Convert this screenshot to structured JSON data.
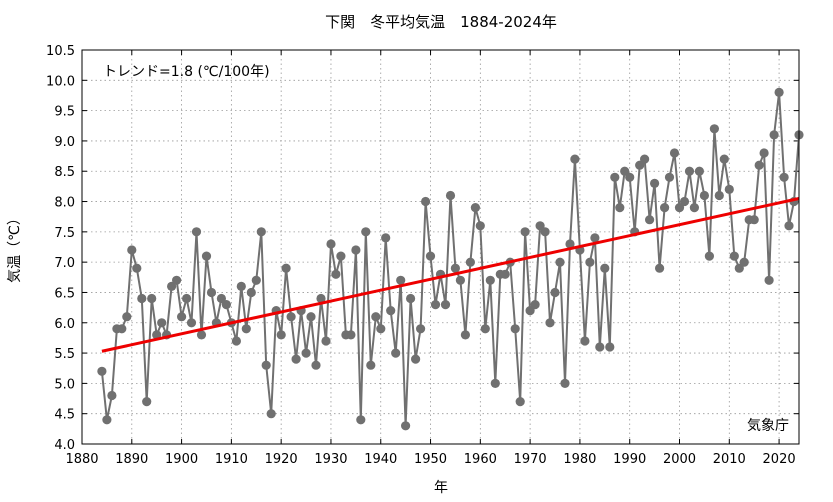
{
  "chart_data": {
    "type": "line",
    "title": "下関　冬平均気温　1884-2024年",
    "xlabel": "年",
    "ylabel": "気温（℃）",
    "xlim": [
      1880,
      2024
    ],
    "ylim": [
      4.0,
      10.5
    ],
    "x_ticks": [
      1880,
      1890,
      1900,
      1910,
      1920,
      1930,
      1940,
      1950,
      1960,
      1970,
      1980,
      1990,
      2000,
      2010,
      2020
    ],
    "y_ticks": [
      4.0,
      4.5,
      5.0,
      5.5,
      6.0,
      6.5,
      7.0,
      7.5,
      8.0,
      8.5,
      9.0,
      9.5,
      10.0,
      10.5
    ],
    "grid": true,
    "trend_label": "トレンド=1.8 (℃/100年)",
    "source_label": "気象庁",
    "series": [
      {
        "color": "#707070",
        "x": [
          1884,
          1885,
          1886,
          1887,
          1888,
          1889,
          1890,
          1891,
          1892,
          1893,
          1894,
          1895,
          1896,
          1897,
          1898,
          1899,
          1900,
          1901,
          1902,
          1903,
          1904,
          1905,
          1906,
          1907,
          1908,
          1909,
          1910,
          1911,
          1912,
          1913,
          1914,
          1915,
          1916,
          1917,
          1918,
          1919,
          1920,
          1921,
          1922,
          1923,
          1924,
          1925,
          1926,
          1927,
          1928,
          1929,
          1930,
          1931,
          1932,
          1933,
          1934,
          1935,
          1936,
          1937,
          1938,
          1939,
          1940,
          1941,
          1942,
          1943,
          1944,
          1945,
          1946,
          1947,
          1948,
          1949,
          1950,
          1951,
          1952,
          1953,
          1954,
          1955,
          1956,
          1957,
          1958,
          1959,
          1960,
          1961,
          1962,
          1963,
          1964,
          1965,
          1966,
          1967,
          1968,
          1969,
          1970,
          1971,
          1972,
          1973,
          1974,
          1975,
          1976,
          1977,
          1978,
          1979,
          1980,
          1981,
          1982,
          1983,
          1984,
          1985,
          1986,
          1987,
          1988,
          1989,
          1990,
          1991,
          1992,
          1993,
          1994,
          1995,
          1996,
          1997,
          1998,
          1999,
          2000,
          2001,
          2002,
          2003,
          2004,
          2005,
          2006,
          2007,
          2008,
          2009,
          2010,
          2011,
          2012,
          2013,
          2014,
          2015,
          2016,
          2017,
          2018,
          2019,
          2020,
          2021,
          2022,
          2023,
          2024
        ],
        "y": [
          5.2,
          4.4,
          4.8,
          5.9,
          5.9,
          6.1,
          7.2,
          6.9,
          6.4,
          4.7,
          6.4,
          5.8,
          6.0,
          5.8,
          6.6,
          6.7,
          6.1,
          6.4,
          6.0,
          7.5,
          5.8,
          7.1,
          6.5,
          6.0,
          6.4,
          6.3,
          6.0,
          5.7,
          6.6,
          5.9,
          6.5,
          6.7,
          7.5,
          5.3,
          4.5,
          6.2,
          5.8,
          6.9,
          6.1,
          5.4,
          6.2,
          5.5,
          6.1,
          5.3,
          6.4,
          5.7,
          7.3,
          6.8,
          7.1,
          5.8,
          5.8,
          7.2,
          4.4,
          7.5,
          5.3,
          6.1,
          5.9,
          7.4,
          6.2,
          5.5,
          6.7,
          4.3,
          6.4,
          5.4,
          5.9,
          8.0,
          7.1,
          6.3,
          6.8,
          6.3,
          8.1,
          6.9,
          6.7,
          5.8,
          7.0,
          7.9,
          7.6,
          5.9,
          6.7,
          5.0,
          6.8,
          6.8,
          7.0,
          5.9,
          4.7,
          7.5,
          6.2,
          6.3,
          7.6,
          7.5,
          6.0,
          6.5,
          7.0,
          5.0,
          7.3,
          8.7,
          7.2,
          5.7,
          7.0,
          7.4,
          5.6,
          6.9,
          5.6,
          8.4,
          7.9,
          8.5,
          8.4,
          7.5,
          8.6,
          8.7,
          7.7,
          8.3,
          6.9,
          7.9,
          8.4,
          8.8,
          7.9,
          8.0,
          8.5,
          7.9,
          8.5,
          8.1,
          7.1,
          9.2,
          8.1,
          8.7,
          8.2,
          7.1,
          6.9,
          7.0,
          7.7,
          7.7,
          8.6,
          8.8,
          6.7,
          9.1,
          9.8,
          8.4,
          7.6,
          8.0,
          9.1
        ]
      }
    ],
    "trend": {
      "color": "#ee0000",
      "x": [
        1884,
        2024
      ],
      "y": [
        5.53,
        8.05
      ]
    }
  }
}
